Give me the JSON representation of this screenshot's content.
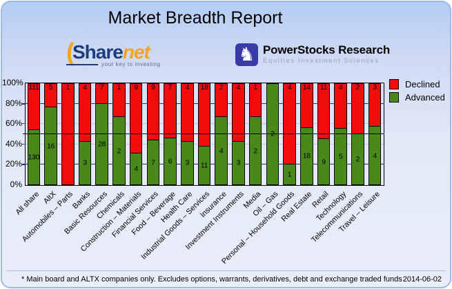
{
  "header": {
    "title": "Market Breadth Report"
  },
  "logos": {
    "sharenet": {
      "paren": "(",
      "brand_part1": "Share",
      "brand_part2": "net",
      "tagline": "your key to investing"
    },
    "powerstocks": {
      "icon_glyph": "♞",
      "title": "PowerStocks  Research",
      "subtitle": "Equities Investment Sciences"
    }
  },
  "chart_data": {
    "type": "bar",
    "stacked": true,
    "unit": "percent of companies",
    "title": "Market Breadth Report",
    "ylim": [
      0,
      100
    ],
    "y_tick_labels": [
      "0%",
      "20%",
      "40%",
      "60%",
      "80%",
      "100%"
    ],
    "gridlines": {
      "navy_pcts": [
        20,
        80
      ],
      "silver_pcts": [
        40,
        60
      ],
      "reference_line_pct": 50,
      "navy_color": "#26268c",
      "silver_color": "#c0c4cc",
      "reference_color": "#000000"
    },
    "legend_position": "top-right",
    "categories": [
      "All share",
      "AltX",
      "Automobiles – Parts",
      "Banks",
      "Basic Resources",
      "Chemicals",
      "Construction – Materials",
      "Financial Services",
      "Food – Beverage",
      "Health Care",
      "Industrial Goods – Services",
      "Insurance",
      "Investment Instruments",
      "Media",
      "Oil – Gas",
      "Personal – Household Goods",
      "Real Estate",
      "Retail",
      "Technology",
      "Telecommunications",
      "Travel – Leisure"
    ],
    "series": [
      {
        "name": "Declined",
        "color": "#f20d0c",
        "position": "top",
        "values": [
          111,
          5,
          1,
          4,
          7,
          1,
          9,
          9,
          7,
          4,
          18,
          2,
          4,
          1,
          0,
          4,
          14,
          11,
          4,
          2,
          3
        ]
      },
      {
        "name": "Advanced",
        "color": "#48891a",
        "position": "bottom",
        "values": [
          130,
          16,
          0,
          3,
          28,
          2,
          4,
          7,
          6,
          3,
          11,
          4,
          3,
          2,
          2,
          1,
          18,
          9,
          5,
          2,
          4
        ]
      }
    ],
    "bar_value_labels": "count shown inside each segment"
  },
  "footer": {
    "note": "* Main board and ALTX companies only. Excludes options, warrants, derivatives, debt and exchange traded funds",
    "date": "2014-06-02"
  }
}
